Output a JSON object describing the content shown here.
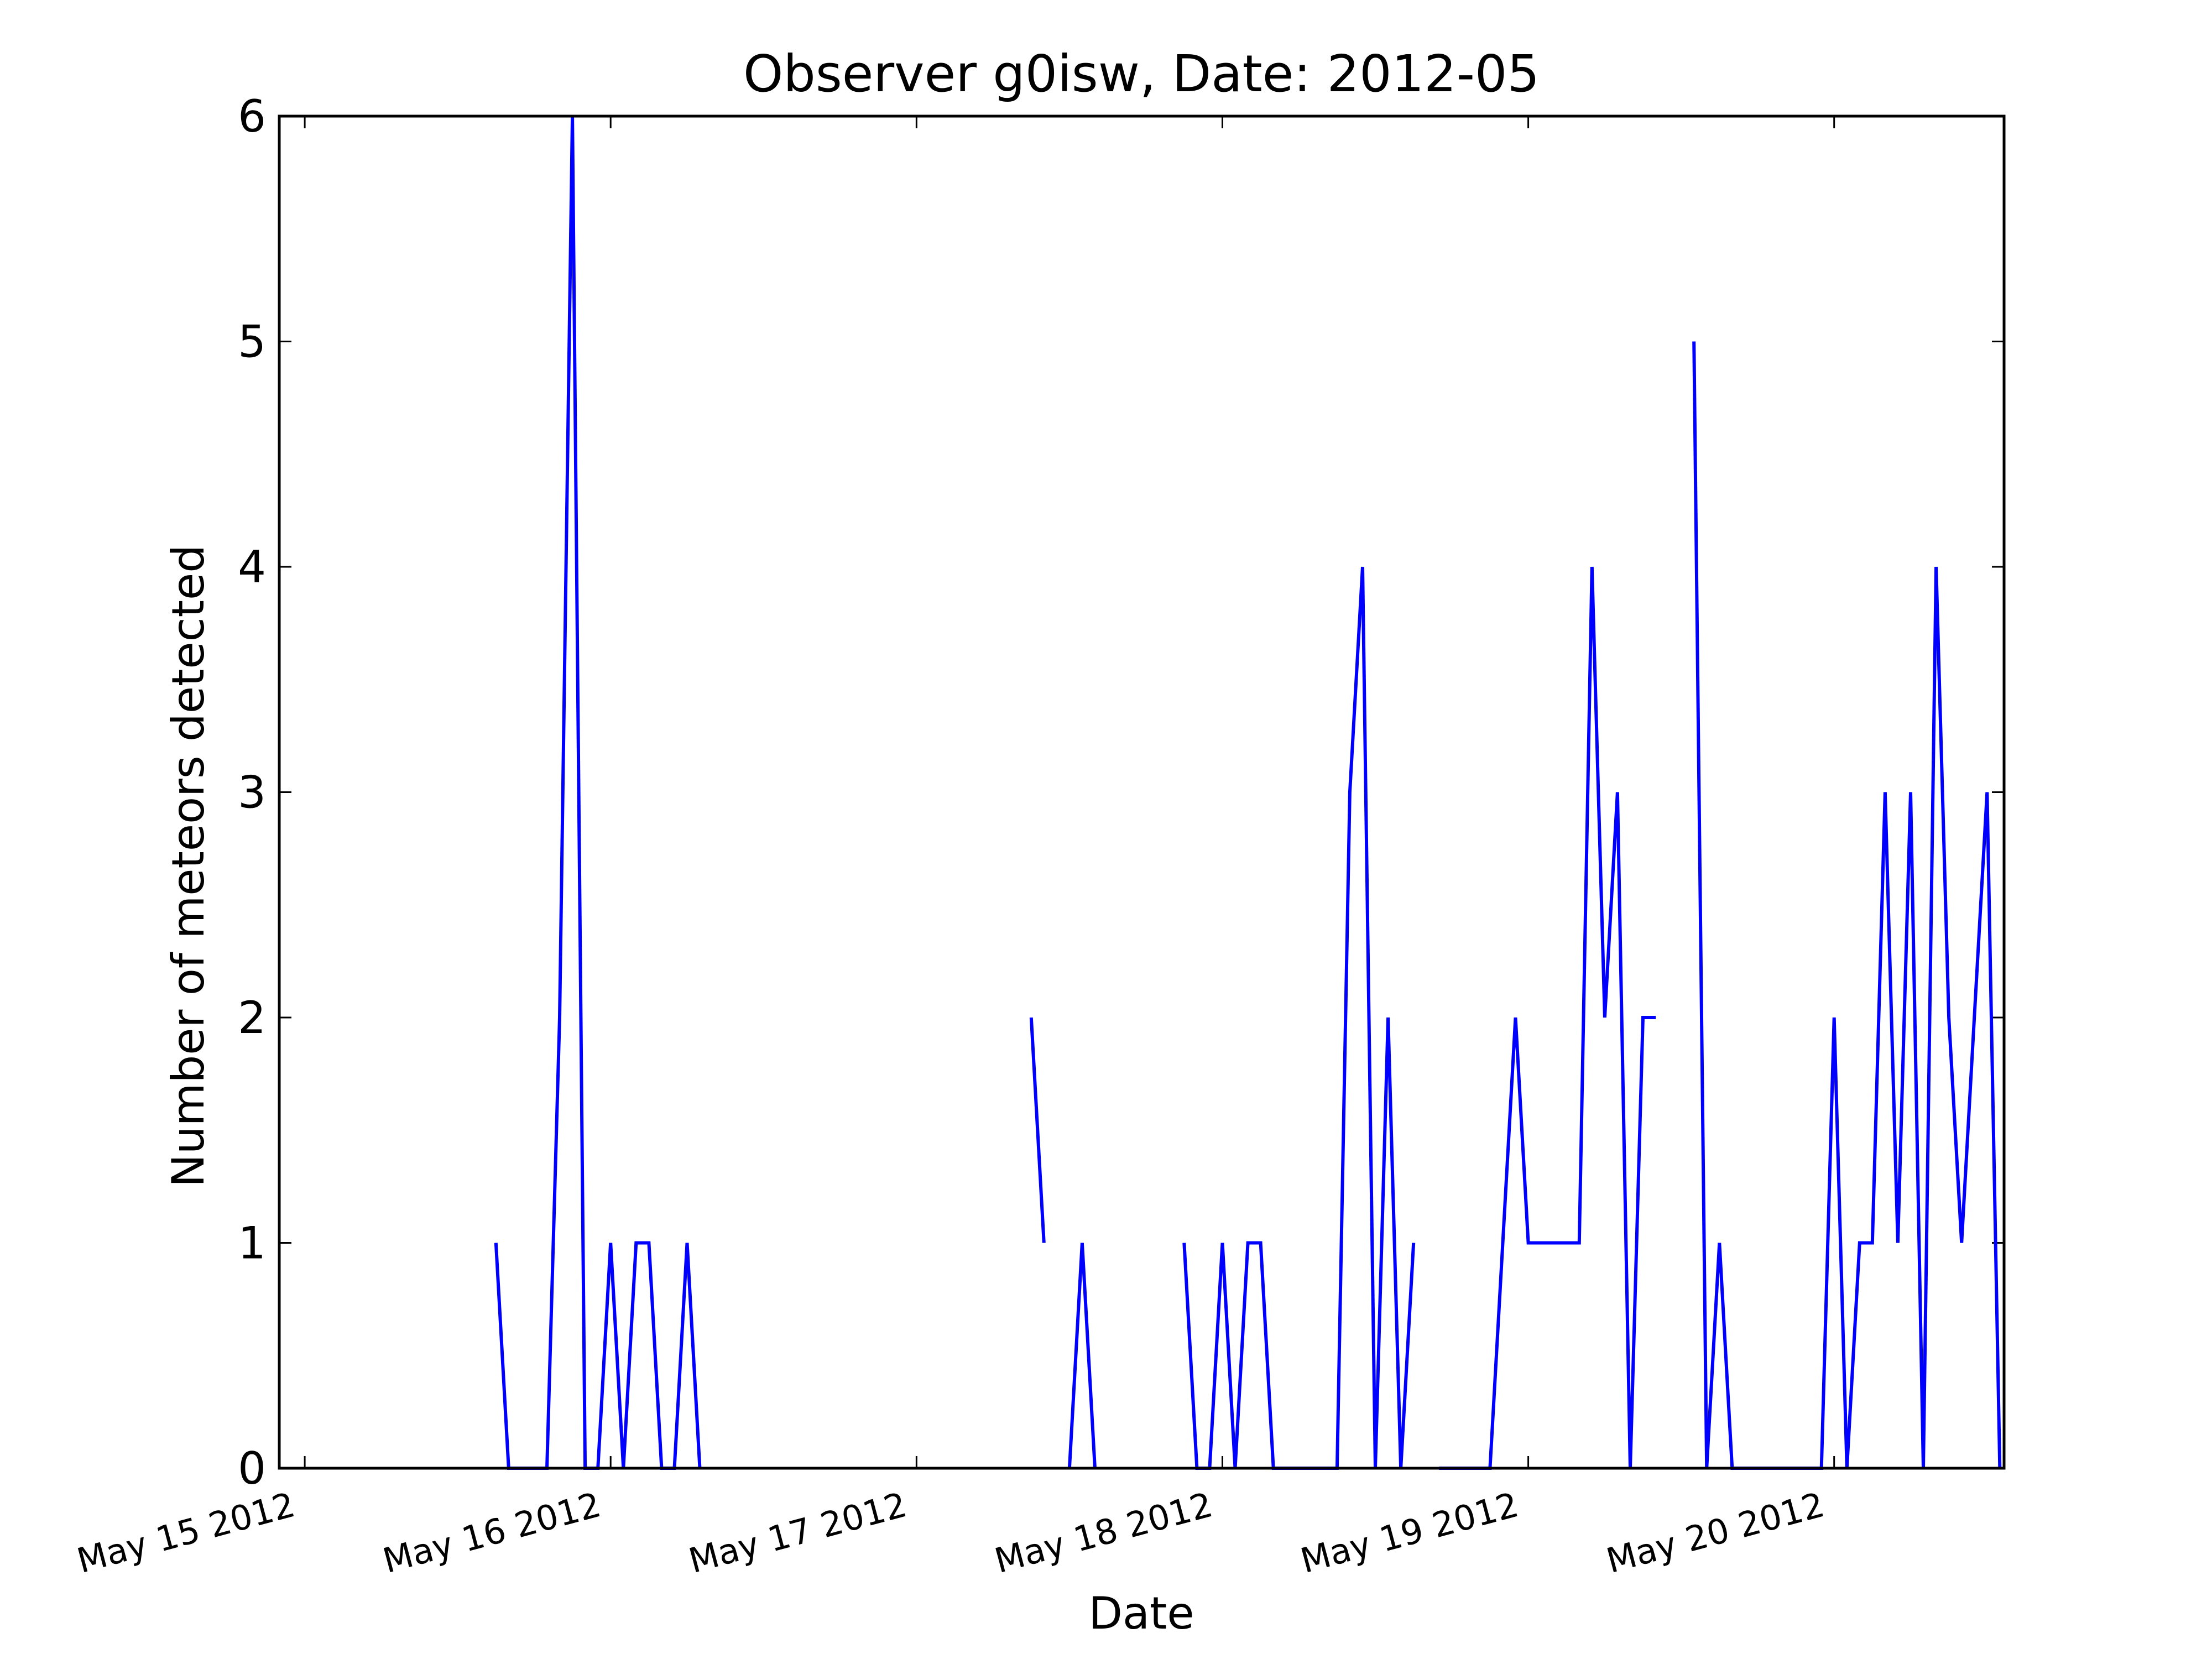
{
  "chart_data": {
    "type": "line",
    "title": "Observer g0isw, Date: 2012-05",
    "xlabel": "Date",
    "ylabel": "Number of meteors detected",
    "ylim": [
      0,
      6
    ],
    "xlim": [
      "2012-05-14 22:00",
      "2012-05-20 13:20"
    ],
    "yticks": [
      0,
      1,
      2,
      3,
      4,
      5,
      6
    ],
    "xticks": [
      {
        "date": "2012-05-15 00:00",
        "label": "May 15 2012"
      },
      {
        "date": "2012-05-16 00:00",
        "label": "May 16 2012"
      },
      {
        "date": "2012-05-17 00:00",
        "label": "May 17 2012"
      },
      {
        "date": "2012-05-18 00:00",
        "label": "May 18 2012"
      },
      {
        "date": "2012-05-19 00:00",
        "label": "May 19 2012"
      },
      {
        "date": "2012-05-20 00:00",
        "label": "May 20 2012"
      }
    ],
    "grid": false,
    "legend": "none",
    "line_color": "#0000ff",
    "series": [
      {
        "segments": [
          {
            "x": [
              "2012-05-15 15:00",
              "2012-05-15 16:00",
              "2012-05-15 17:00",
              "2012-05-15 18:00",
              "2012-05-15 19:00",
              "2012-05-15 20:00",
              "2012-05-15 21:00",
              "2012-05-15 22:00",
              "2012-05-15 23:00",
              "2012-05-16 00:00",
              "2012-05-16 01:00",
              "2012-05-16 02:00",
              "2012-05-16 03:00",
              "2012-05-16 04:00",
              "2012-05-16 05:00",
              "2012-05-16 06:00",
              "2012-05-16 07:00",
              "2012-05-16 08:00",
              "2012-05-16 09:00",
              "2012-05-16 10:00"
            ],
            "y": [
              1,
              0,
              0,
              0,
              0,
              2,
              6,
              0,
              0,
              1,
              0,
              1,
              1,
              0,
              0,
              1,
              0,
              null,
              null,
              null
            ]
          },
          {
            "x": [
              "2012-05-17 09:00",
              "2012-05-17 10:00",
              "2012-05-17 11:00",
              "2012-05-17 12:00",
              "2012-05-17 13:00",
              "2012-05-17 14:00"
            ],
            "y": [
              2,
              1,
              null,
              0,
              1,
              0
            ]
          },
          {
            "x": [
              "2012-05-17 21:00",
              "2012-05-17 22:00",
              "2012-05-17 23:00",
              "2012-05-18 00:00",
              "2012-05-18 01:00",
              "2012-05-18 02:00",
              "2012-05-18 03:00",
              "2012-05-18 04:00",
              "2012-05-18 05:00",
              "2012-05-18 06:00",
              "2012-05-18 07:00",
              "2012-05-18 08:00",
              "2012-05-18 09:00",
              "2012-05-18 10:00",
              "2012-05-18 11:00",
              "2012-05-18 12:00",
              "2012-05-18 13:00",
              "2012-05-18 14:00"
            ],
            "y": [
              1,
              0,
              0,
              1,
              0,
              1,
              1,
              0,
              0,
              0,
              0,
              0,
              0,
              3,
              4,
              0,
              2,
              0
            ]
          },
          {
            "x": [
              "2012-05-18 14:00",
              "2012-05-18 15:00"
            ],
            "y": [
              0,
              1
            ]
          },
          {
            "x": [
              "2012-05-18 17:00",
              "2012-05-18 18:00",
              "2012-05-18 19:00",
              "2012-05-18 20:00",
              "2012-05-18 21:00",
              "2012-05-18 22:00",
              "2012-05-18 23:00",
              "2012-05-19 00:00",
              "2012-05-19 01:00",
              "2012-05-19 02:00",
              "2012-05-19 03:00",
              "2012-05-19 04:00",
              "2012-05-19 05:00",
              "2012-05-19 06:00",
              "2012-05-19 07:00",
              "2012-05-19 08:00",
              "2012-05-19 09:00",
              "2012-05-19 10:00"
            ],
            "y": [
              0,
              0,
              0,
              0,
              0,
              1,
              2,
              1,
              1,
              1,
              1,
              1,
              4,
              2,
              3,
              0,
              2,
              2
            ]
          },
          {
            "x": [
              "2012-05-19 13:00",
              "2012-05-19 14:00",
              "2012-05-19 15:00",
              "2012-05-19 16:00",
              "2012-05-19 17:00",
              "2012-05-19 18:00",
              "2012-05-19 19:00",
              "2012-05-19 20:00",
              "2012-05-19 21:00",
              "2012-05-19 22:00",
              "2012-05-19 23:00",
              "2012-05-20 00:00",
              "2012-05-20 01:00",
              "2012-05-20 02:00",
              "2012-05-20 03:00",
              "2012-05-20 04:00",
              "2012-05-20 05:00",
              "2012-05-20 06:00",
              "2012-05-20 07:00",
              "2012-05-20 08:00",
              "2012-05-20 09:00",
              "2012-05-20 10:00",
              "2012-05-20 11:00",
              "2012-05-20 12:00",
              "2012-05-20 13:00"
            ],
            "y": [
              5,
              0,
              1,
              0,
              0,
              0,
              0,
              0,
              0,
              0,
              0,
              2,
              0,
              1,
              1,
              3,
              1,
              3,
              0,
              4,
              2,
              1,
              2,
              3,
              0
            ]
          }
        ]
      }
    ]
  }
}
